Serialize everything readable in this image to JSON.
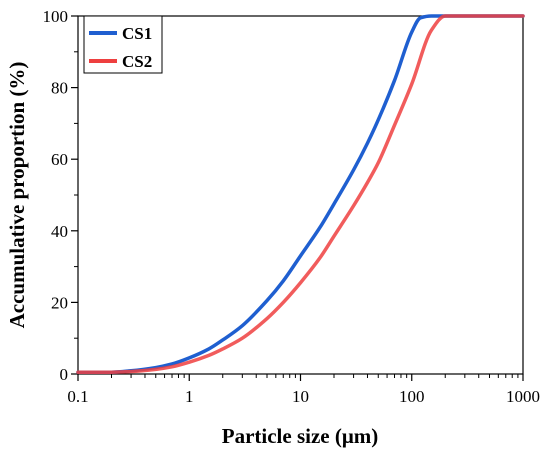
{
  "chart_data": {
    "type": "line",
    "title": "",
    "xlabel": "Particle size (μm)",
    "ylabel": "Accumulative proportion (%)",
    "xscale": "log",
    "xlim": [
      0.1,
      1000
    ],
    "ylim": [
      0,
      100
    ],
    "xticks": [
      0.1,
      1,
      10,
      100,
      1000
    ],
    "xtick_labels": [
      "0.1",
      "1",
      "10",
      "100",
      "1000"
    ],
    "yticks": [
      0,
      20,
      40,
      60,
      80,
      100
    ],
    "ytick_labels": [
      "0",
      "20",
      "40",
      "60",
      "80",
      "100"
    ],
    "grid": false,
    "legend_position": "top-left",
    "series": [
      {
        "name": "CS1",
        "color": "#1f5fd0",
        "x": [
          0.1,
          0.2,
          0.3,
          0.5,
          0.7,
          1,
          1.5,
          2,
          3,
          5,
          7,
          10,
          15,
          20,
          30,
          40,
          50,
          70,
          100,
          120,
          150,
          200,
          300,
          500,
          1000
        ],
        "y": [
          0.5,
          0.5,
          0.9,
          1.8,
          2.8,
          4.5,
          7.0,
          9.5,
          13.5,
          20.5,
          26.0,
          33.0,
          41.0,
          47.5,
          57.0,
          64.5,
          71.0,
          82.0,
          95.5,
          99.5,
          100,
          100,
          100,
          100,
          100
        ]
      },
      {
        "name": "CS2",
        "color": "#ee3f3f",
        "x": [
          0.1,
          0.2,
          0.3,
          0.5,
          0.7,
          1,
          1.5,
          2,
          3,
          5,
          7,
          10,
          15,
          20,
          30,
          40,
          50,
          70,
          100,
          150,
          200,
          300,
          500,
          1000
        ],
        "y": [
          0.5,
          0.5,
          0.7,
          1.3,
          2.0,
          3.3,
          5.2,
          7.0,
          10.0,
          15.5,
          20.0,
          25.5,
          32.5,
          38.5,
          47.0,
          53.5,
          59.0,
          69.5,
          81.0,
          96.0,
          100,
          100,
          100,
          100
        ]
      }
    ]
  }
}
